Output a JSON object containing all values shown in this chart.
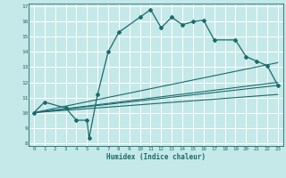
{
  "xlabel": "Humidex (Indice chaleur)",
  "bg_color": "#c5e8e8",
  "grid_color": "#ffffff",
  "line_color": "#1a6b6b",
  "xlim": [
    -0.5,
    23.5
  ],
  "ylim": [
    7.8,
    17.2
  ],
  "xticks": [
    0,
    1,
    2,
    3,
    4,
    5,
    6,
    7,
    8,
    9,
    10,
    11,
    12,
    13,
    14,
    15,
    16,
    17,
    18,
    19,
    20,
    21,
    22,
    23
  ],
  "yticks": [
    8,
    9,
    10,
    11,
    12,
    13,
    14,
    15,
    16,
    17
  ],
  "line1_x": [
    0,
    1,
    3,
    4,
    5,
    5.2,
    6,
    7,
    8,
    10,
    11,
    12,
    13,
    14,
    15,
    16,
    17,
    19,
    20,
    21,
    22,
    23
  ],
  "line1_y": [
    10,
    10.7,
    10.3,
    9.5,
    9.5,
    8.3,
    11.2,
    14.0,
    15.3,
    16.3,
    16.8,
    15.6,
    16.3,
    15.8,
    16.0,
    16.1,
    14.8,
    14.8,
    13.7,
    13.4,
    13.1,
    11.8
  ],
  "line2_x": [
    0,
    23
  ],
  "line2_y": [
    10,
    11.8
  ],
  "line3_x": [
    0,
    23
  ],
  "line3_y": [
    10,
    13.3
  ],
  "line4_x": [
    0,
    23
  ],
  "line4_y": [
    10,
    12.0
  ],
  "line5_x": [
    0,
    23
  ],
  "line5_y": [
    10,
    11.2
  ]
}
